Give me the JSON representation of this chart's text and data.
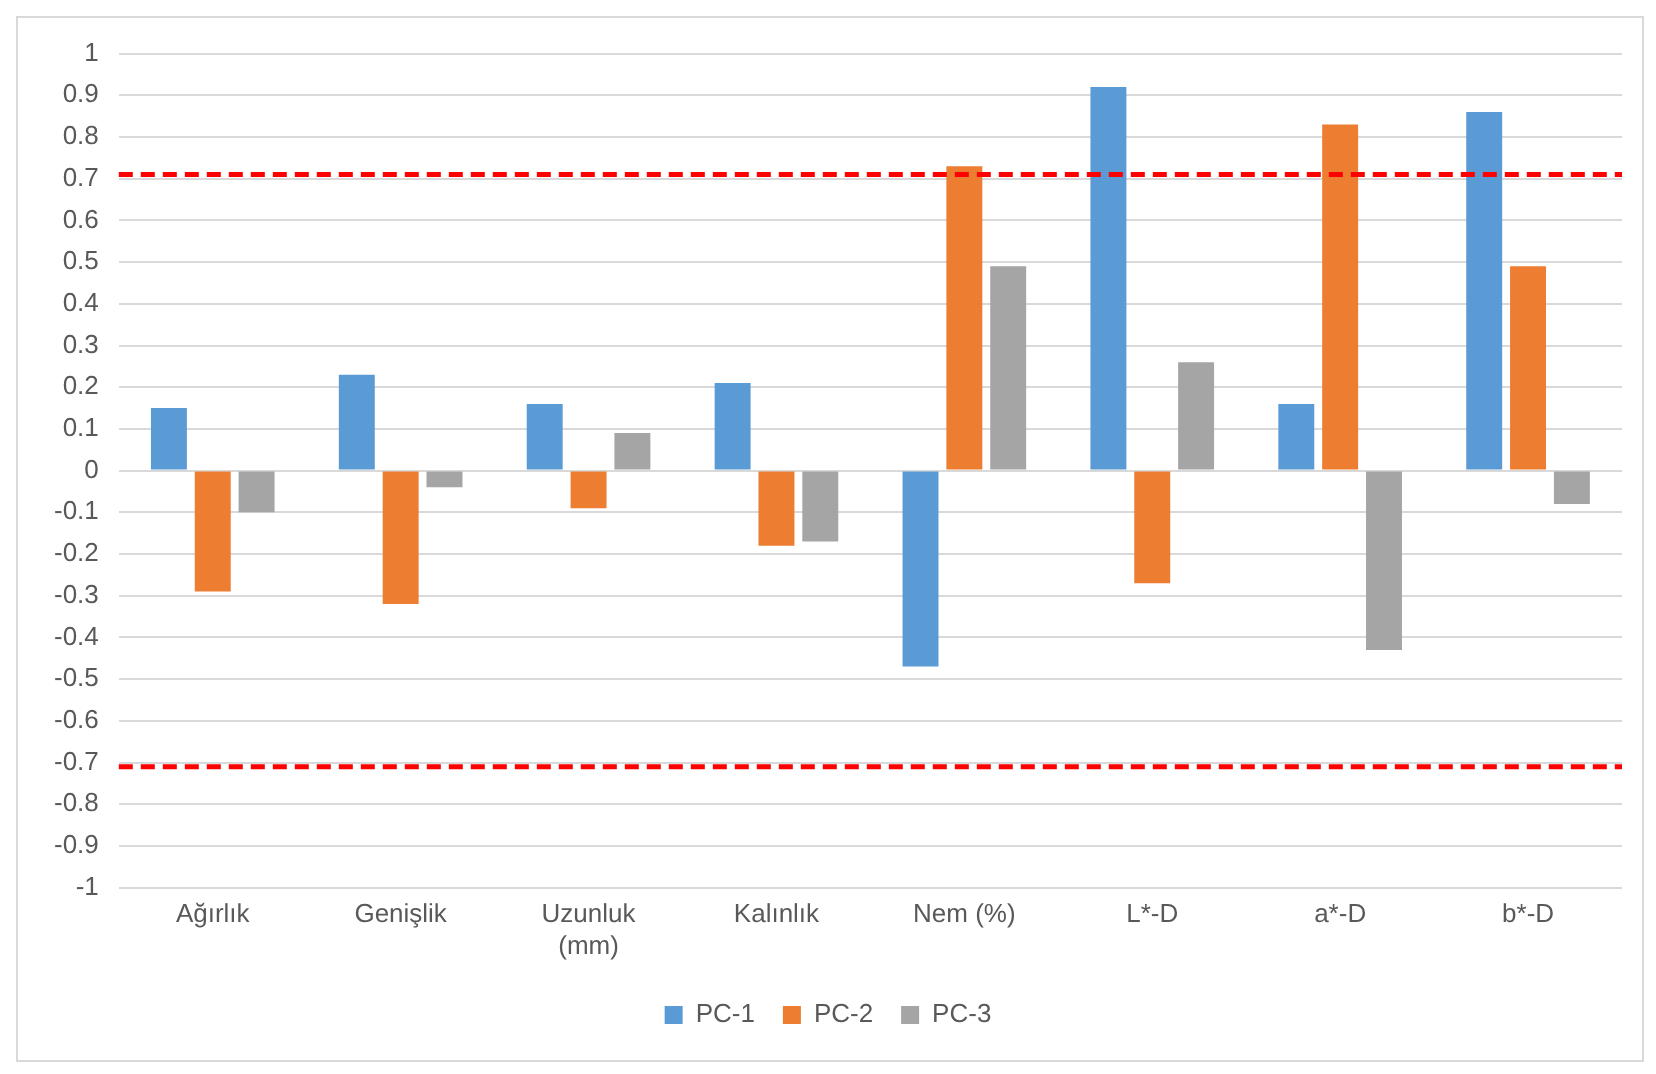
{
  "chart_data": {
    "type": "bar",
    "categories": [
      "Ağırlık",
      "Genişlik",
      "Uzunluk (mm)",
      "Kalınlık",
      "Nem (%)",
      "L*-D",
      "a*-D",
      "b*-D"
    ],
    "series": [
      {
        "name": "PC-1",
        "color": "#5b9bd5",
        "values": [
          0.15,
          0.23,
          0.16,
          0.21,
          -0.47,
          0.92,
          0.16,
          0.86
        ]
      },
      {
        "name": "PC-2",
        "color": "#ed7d31",
        "values": [
          -0.29,
          -0.32,
          -0.09,
          -0.18,
          0.73,
          -0.27,
          0.83,
          0.49
        ]
      },
      {
        "name": "PC-3",
        "color": "#a5a5a5",
        "values": [
          -0.1,
          -0.04,
          0.09,
          -0.17,
          0.49,
          0.26,
          -0.43,
          -0.08
        ]
      }
    ],
    "ylim": [
      -1,
      1
    ],
    "yticks": [
      -1,
      -0.9,
      -0.8,
      -0.7,
      -0.6,
      -0.5,
      -0.4,
      -0.3,
      -0.2,
      -0.1,
      0,
      0.1,
      0.2,
      0.3,
      0.4,
      0.5,
      0.6,
      0.7,
      0.8,
      0.9,
      1
    ],
    "ref_lines": [
      {
        "axis": "y",
        "value": 0.71,
        "color": "#ff0000",
        "line_style": "dashed"
      },
      {
        "axis": "y",
        "value": -0.71,
        "color": "#ff0000",
        "line_style": "dashed"
      }
    ],
    "grid": "y",
    "legend": "bottom"
  }
}
